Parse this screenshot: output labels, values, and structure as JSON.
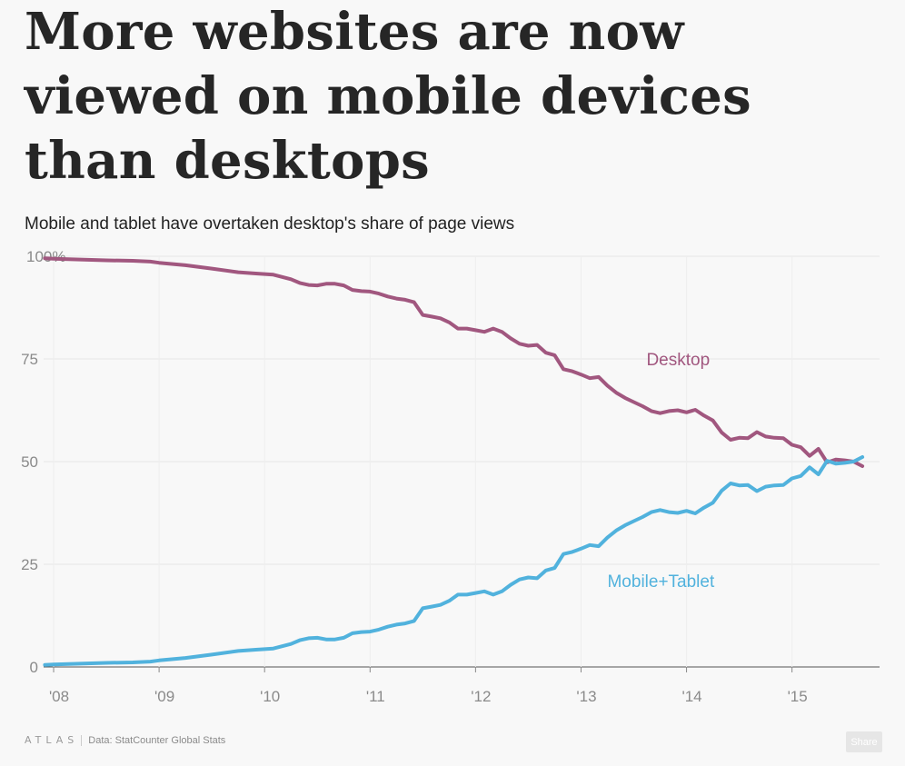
{
  "title": "More websites are now viewed on mobile devices than desktops",
  "subtitle": "Mobile and tablet have overtaken desktop's share of page views",
  "footer": {
    "logo": "ATLAS",
    "source": "Data: StatCounter Global Stats"
  },
  "share_label": "Share",
  "chart_data": {
    "type": "line",
    "title": "More websites are now viewed on mobile devices than desktops",
    "subtitle": "Mobile and tablet have overtaken desktop's share of page views",
    "xlabel": "",
    "ylabel": "",
    "x_ticks": [
      "'08",
      "'09",
      "'10",
      "'11",
      "'12",
      "'13",
      "'14",
      "'15"
    ],
    "y_ticks": [
      "100%",
      "75",
      "50",
      "25",
      "0"
    ],
    "ylim": [
      0,
      100
    ],
    "xlim": [
      2007.88,
      2015.75
    ],
    "grid": true,
    "legend": "inline labels",
    "series": [
      {
        "name": "Desktop",
        "color": "#a1577f",
        "x": [
          2007.917,
          2008.0,
          2008.25,
          2008.5,
          2008.75,
          2008.917,
          2009.0,
          2009.25,
          2009.5,
          2009.75,
          2009.917,
          2010.083,
          2010.25,
          2010.333,
          2010.417,
          2010.5,
          2010.583,
          2010.667,
          2010.75,
          2010.833,
          2010.917,
          2011.0,
          2011.083,
          2011.167,
          2011.25,
          2011.333,
          2011.417,
          2011.5,
          2011.583,
          2011.667,
          2011.75,
          2011.833,
          2011.917,
          2012.0,
          2012.083,
          2012.167,
          2012.25,
          2012.333,
          2012.417,
          2012.5,
          2012.583,
          2012.667,
          2012.75,
          2012.833,
          2012.917,
          2013.0,
          2013.083,
          2013.167,
          2013.25,
          2013.333,
          2013.417,
          2013.5,
          2013.583,
          2013.667,
          2013.75,
          2013.833,
          2013.917,
          2014.0,
          2014.083,
          2014.167,
          2014.25,
          2014.333,
          2014.417,
          2014.5,
          2014.583,
          2014.667,
          2014.75,
          2014.833,
          2014.917,
          2015.0,
          2015.083,
          2015.167,
          2015.25,
          2015.333,
          2015.417,
          2015.5,
          2015.583,
          2015.667
        ],
        "values": [
          99.5,
          99.4,
          99.2,
          99.0,
          98.9,
          98.7,
          98.4,
          97.8,
          97.0,
          96.1,
          95.8,
          95.5,
          94.4,
          93.5,
          93.0,
          92.9,
          93.3,
          93.3,
          92.9,
          91.8,
          91.5,
          91.4,
          90.9,
          90.2,
          89.7,
          89.4,
          88.8,
          85.7,
          85.3,
          84.9,
          83.9,
          82.4,
          82.4,
          82.0,
          81.6,
          82.4,
          81.6,
          80.0,
          78.7,
          78.2,
          78.4,
          76.5,
          75.9,
          72.5,
          72.0,
          71.2,
          70.3,
          70.6,
          68.5,
          66.8,
          65.5,
          64.5,
          63.5,
          62.3,
          61.8,
          62.3,
          62.5,
          62.0,
          62.6,
          61.2,
          60.0,
          57.1,
          55.3,
          55.8,
          55.7,
          57.2,
          56.1,
          55.8,
          55.7,
          54.1,
          53.5,
          51.4,
          53.1,
          49.8,
          50.5,
          50.3,
          50.0,
          48.9
        ]
      },
      {
        "name": "Mobile+Tablet",
        "color": "#51b2dd",
        "x": [
          2007.917,
          2008.0,
          2008.25,
          2008.5,
          2008.75,
          2008.917,
          2009.0,
          2009.25,
          2009.5,
          2009.75,
          2009.917,
          2010.083,
          2010.25,
          2010.333,
          2010.417,
          2010.5,
          2010.583,
          2010.667,
          2010.75,
          2010.833,
          2010.917,
          2011.0,
          2011.083,
          2011.167,
          2011.25,
          2011.333,
          2011.417,
          2011.5,
          2011.583,
          2011.667,
          2011.75,
          2011.833,
          2011.917,
          2012.0,
          2012.083,
          2012.167,
          2012.25,
          2012.333,
          2012.417,
          2012.5,
          2012.583,
          2012.667,
          2012.75,
          2012.833,
          2012.917,
          2013.0,
          2013.083,
          2013.167,
          2013.25,
          2013.333,
          2013.417,
          2013.5,
          2013.583,
          2013.667,
          2013.75,
          2013.833,
          2013.917,
          2014.0,
          2014.083,
          2014.167,
          2014.25,
          2014.333,
          2014.417,
          2014.5,
          2014.583,
          2014.667,
          2014.75,
          2014.833,
          2014.917,
          2015.0,
          2015.083,
          2015.167,
          2015.25,
          2015.333,
          2015.417,
          2015.5,
          2015.583,
          2015.667
        ],
        "values": [
          0.5,
          0.6,
          0.8,
          1.0,
          1.1,
          1.3,
          1.6,
          2.2,
          3.0,
          3.9,
          4.2,
          4.5,
          5.6,
          6.5,
          7.0,
          7.1,
          6.7,
          6.7,
          7.1,
          8.2,
          8.5,
          8.6,
          9.1,
          9.8,
          10.3,
          10.6,
          11.2,
          14.3,
          14.7,
          15.1,
          16.1,
          17.6,
          17.6,
          18.0,
          18.4,
          17.6,
          18.4,
          20.0,
          21.3,
          21.8,
          21.6,
          23.5,
          24.1,
          27.5,
          28.0,
          28.8,
          29.7,
          29.4,
          31.5,
          33.2,
          34.5,
          35.5,
          36.5,
          37.7,
          38.2,
          37.7,
          37.5,
          38.0,
          37.4,
          38.8,
          40.0,
          42.9,
          44.7,
          44.2,
          44.3,
          42.8,
          43.9,
          44.2,
          44.3,
          45.9,
          46.5,
          48.6,
          46.9,
          50.2,
          49.5,
          49.7,
          50.0,
          51.1
        ]
      }
    ]
  }
}
